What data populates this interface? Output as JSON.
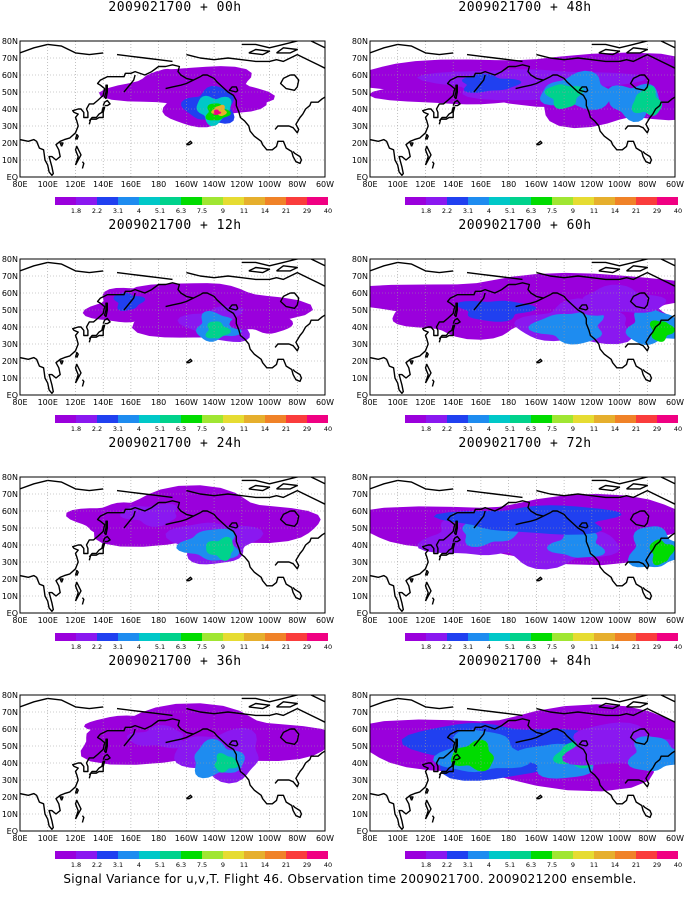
{
  "colors": {
    "colorbar": [
      "#9a00dc",
      "#8a18f0",
      "#2040f0",
      "#1e8cf0",
      "#00c8c8",
      "#00d28c",
      "#00dc00",
      "#a0e632",
      "#e6dc32",
      "#e6af2d",
      "#f08228",
      "#fa3c3c",
      "#f00082"
    ],
    "coast": "#000000",
    "grid": "#999999"
  },
  "lat_labels": [
    "EQ",
    "10N",
    "20N",
    "30N",
    "40N",
    "50N",
    "60N",
    "70N",
    "80N"
  ],
  "lon_labels": [
    "80E",
    "100E",
    "120E",
    "140E",
    "160E",
    "180",
    "160W",
    "140W",
    "120W",
    "100W",
    "80W",
    "60W"
  ],
  "colorbar_labels": [
    "1.8",
    "2.2",
    "3.1",
    "4",
    "5.1",
    "6.3",
    "7.5",
    "9",
    "11",
    "14",
    "21",
    "29",
    "40"
  ],
  "panels": [
    {
      "title": "2009021700 + 00h"
    },
    {
      "title": "2009021700 + 48h"
    },
    {
      "title": "2009021700 + 12h"
    },
    {
      "title": "2009021700 + 60h"
    },
    {
      "title": "2009021700 + 24h"
    },
    {
      "title": "2009021700 + 72h"
    },
    {
      "title": "2009021700 + 36h"
    },
    {
      "title": "2009021700 + 84h"
    }
  ],
  "footer": "Signal Variance for u,v,T. Flight 46. Observation time 2009021700. 2009021200 ensemble.",
  "chart_data": {
    "type": "heatmap",
    "projection": "lat-lon",
    "xlim": [
      "80E",
      "60W"
    ],
    "ylim": [
      "EQ",
      "80N"
    ],
    "grid": true,
    "colorbar_levels": [
      1.8,
      2.2,
      3.1,
      4,
      5.1,
      6.3,
      7.5,
      9,
      11,
      14,
      21,
      29,
      40
    ],
    "panels": [
      {
        "title": "2009021700 + 00h",
        "lead_hours": 0,
        "max_level": 21,
        "center_lon": "140W",
        "center_lat": "40N"
      },
      {
        "title": "2009021700 + 12h",
        "lead_hours": 12,
        "max_level": 7.5,
        "center_lon": "140W",
        "center_lat": "38N"
      },
      {
        "title": "2009021700 + 24h",
        "lead_hours": 24,
        "max_level": 6.3,
        "center_lon": "135W",
        "center_lat": "38N"
      },
      {
        "title": "2009021700 + 36h",
        "lead_hours": 36,
        "max_level": 6.3,
        "center_lon": "130W",
        "center_lat": "42N"
      },
      {
        "title": "2009021700 + 48h",
        "lead_hours": 48,
        "max_level": 6.3,
        "center_lon": "130W",
        "center_lat": "48N"
      },
      {
        "title": "2009021700 + 60h",
        "lead_hours": 60,
        "max_level": 9,
        "center_lon": "70W",
        "center_lat": "38N"
      },
      {
        "title": "2009021700 + 72h",
        "lead_hours": 72,
        "max_level": 9,
        "center_lon": "70W",
        "center_lat": "35N"
      },
      {
        "title": "2009021700 + 84h",
        "lead_hours": 84,
        "max_level": 9,
        "center_lon": "150E",
        "center_lat": "45N"
      }
    ]
  }
}
